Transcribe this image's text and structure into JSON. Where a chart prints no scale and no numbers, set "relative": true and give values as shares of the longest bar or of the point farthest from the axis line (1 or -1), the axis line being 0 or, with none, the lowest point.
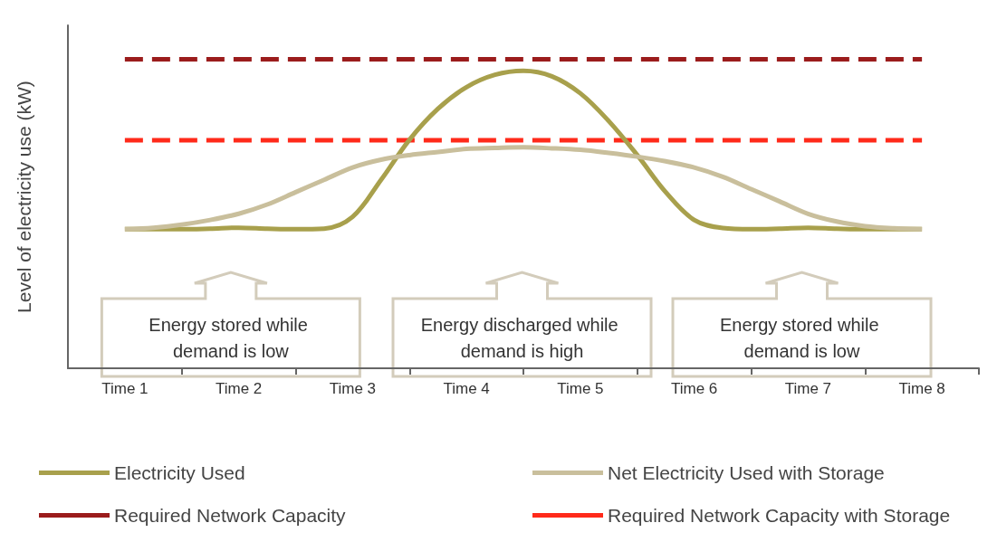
{
  "chart_data": {
    "type": "line",
    "relative": true,
    "ylabel": "Level of electricity use (kW)",
    "categories": [
      null,
      null,
      "Time 1",
      null,
      null,
      null,
      "Time 2",
      null,
      null,
      null,
      "Time 3",
      null,
      null,
      null,
      "Time 4",
      null,
      null,
      null,
      "Time 5",
      null,
      null,
      null,
      "Time 6",
      null,
      null,
      null,
      "Time 7",
      null,
      null,
      null,
      "Time 8",
      null,
      null
    ],
    "series": [
      {
        "name": "Electricity Used",
        "color": "#a8a04c",
        "line_style": "solid",
        "values": [
          null,
          null,
          0.45,
          0.45,
          0.45,
          0.452,
          0.455,
          0.452,
          0.45,
          0.452,
          0.49,
          0.61,
          0.74,
          0.84,
          0.91,
          0.95,
          0.963,
          0.945,
          0.89,
          0.8,
          0.69,
          0.57,
          0.48,
          0.454,
          0.45,
          0.452,
          0.455,
          0.452,
          0.45,
          0.45,
          0.45,
          null,
          null
        ]
      },
      {
        "name": "Net Electricity Used with Storage",
        "color": "#c9bf9c",
        "line_style": "solid",
        "values": [
          null,
          null,
          0.45,
          0.455,
          0.465,
          0.48,
          0.5,
          0.53,
          0.57,
          0.61,
          0.65,
          0.675,
          0.69,
          0.7,
          0.71,
          0.713,
          0.715,
          0.712,
          0.707,
          0.697,
          0.685,
          0.67,
          0.65,
          0.62,
          0.58,
          0.54,
          0.5,
          0.475,
          0.46,
          0.453,
          0.45,
          null,
          null
        ]
      },
      {
        "name": "Required Network Capacity",
        "color": "#9b1c1c",
        "line_style": "dashed",
        "values": [
          null,
          null,
          1,
          1,
          1,
          1,
          1,
          1,
          1,
          1,
          1,
          1,
          1,
          1,
          1,
          1,
          1,
          1,
          1,
          1,
          1,
          1,
          1,
          1,
          1,
          1,
          1,
          1,
          1,
          1,
          1,
          null,
          null
        ]
      },
      {
        "name": "Required Network Capacity with Storage",
        "color": "#ff2a1a",
        "line_style": "dashed",
        "values": [
          null,
          null,
          0.738,
          0.738,
          0.738,
          0.738,
          0.738,
          0.738,
          0.738,
          0.738,
          0.738,
          0.738,
          0.738,
          0.738,
          0.738,
          0.738,
          0.738,
          0.738,
          0.738,
          0.738,
          0.738,
          0.738,
          0.738,
          0.738,
          0.738,
          0.738,
          0.738,
          0.738,
          0.738,
          0.738,
          0.738,
          null,
          null
        ]
      }
    ],
    "annotations": [
      "Energy stored while demand is low",
      "Energy discharged while demand is high",
      "Energy stored while demand is low"
    ],
    "grid": false,
    "legend": "bottom",
    "marker": "none"
  }
}
